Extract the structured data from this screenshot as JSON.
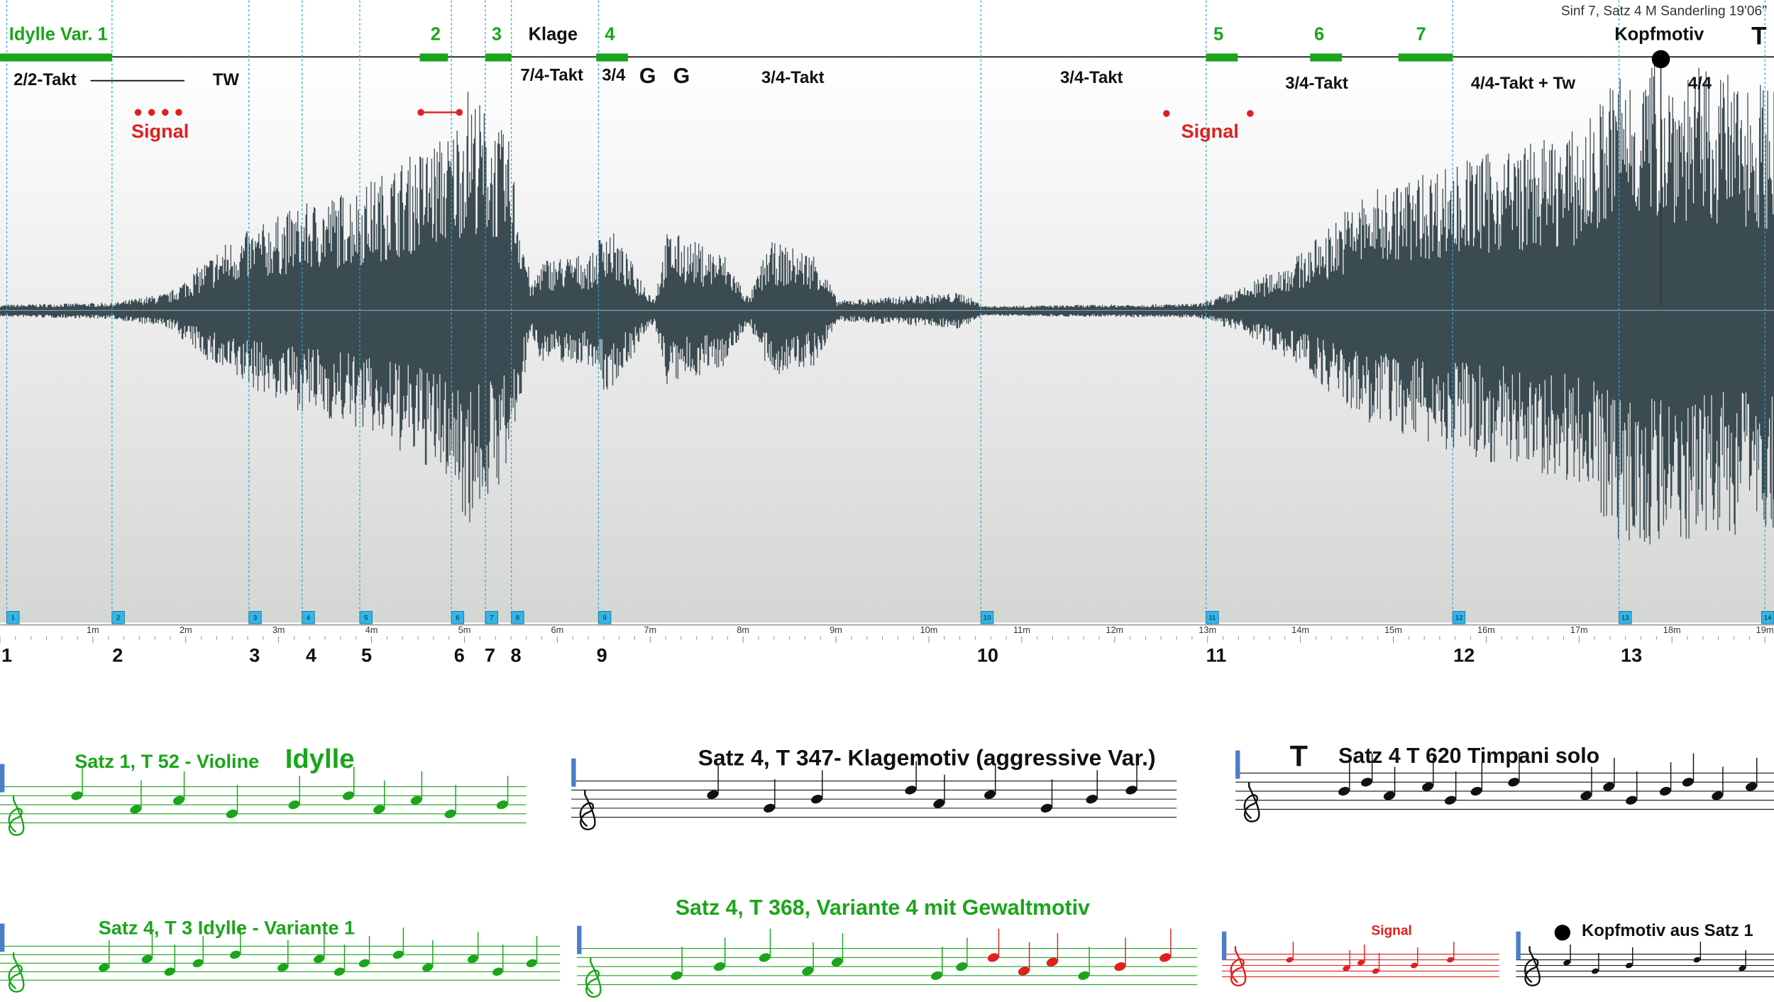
{
  "header": {
    "source": "Sinf 7, Satz 4 M Sanderling 19'06''"
  },
  "sections": [
    "Idylle Var. 1",
    "2",
    "3",
    "Klage",
    "4",
    "5",
    "6",
    "7",
    "Kopfmotiv",
    "T"
  ],
  "meters": [
    "2/2-Takt",
    "TW",
    "7/4-Takt",
    "3/4",
    "G",
    "G",
    "3/4-Takt",
    "3/4-Takt",
    "3/4-Takt",
    "4/4-Takt + Tw",
    "4/4"
  ],
  "signals": [
    "Signal",
    "Signal"
  ],
  "markers": [
    "1",
    "2",
    "3",
    "4",
    "5",
    "6",
    "7",
    "8",
    "9",
    "10",
    "11",
    "12",
    "13",
    "14"
  ],
  "measures": [
    "1",
    "2",
    "3",
    "4",
    "5",
    "6",
    "7",
    "8",
    "9",
    "10",
    "11",
    "12",
    "13"
  ],
  "time_ruler": [
    "1m",
    "2m",
    "3m",
    "4m",
    "5m",
    "6m",
    "7m",
    "8m",
    "9m",
    "10m",
    "11m",
    "12m",
    "13m",
    "14m",
    "15m",
    "16m",
    "17m",
    "18m",
    "19m"
  ],
  "examples": [
    {
      "caption": "Satz 1, T 52 - Violine",
      "title": "Idylle"
    },
    {
      "caption": "Satz 4, T 347- Klagemotiv (aggressive Var.)"
    },
    {
      "title": "T",
      "caption": "Satz 4 T 620 Timpani solo"
    },
    {
      "caption": "Satz 4, T 3 Idylle - Variante 1"
    },
    {
      "caption": "Satz 4, T 368, Variante 4 mit Gewaltmotiv"
    },
    {
      "caption": "Signal"
    },
    {
      "caption": "Kopfmotiv aus Satz 1"
    }
  ]
}
